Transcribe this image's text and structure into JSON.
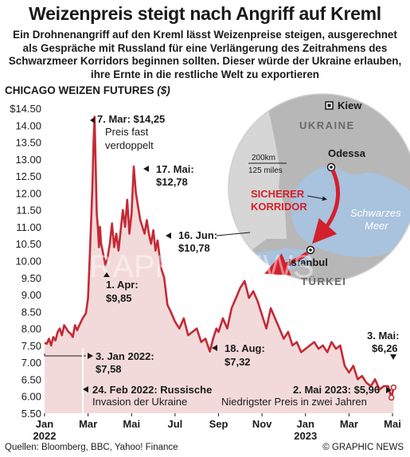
{
  "header": {
    "title": "Weizenpreis steigt nach Angriff auf Kreml",
    "intro": "Ein Drohnenangriff auf den Kreml lässt Weizenpreise steigen, ausgerechnet als Gespräche mit Russland für eine Verlängerung des Zeitrahmens des Schwarzmeer Korridors beginnen sollten. Dieser würde der Ukraine erlauben, ihre Ernte in die restliche Welt zu exportieren"
  },
  "footer": {
    "sources": "Quellen: Bloomberg, BBC, Yahoo! Finance",
    "credit": "© GRAPHIC NEWS"
  },
  "map": {
    "kiev": "Kiew",
    "ukraine": "UKRAINE",
    "odessa": "Odessa",
    "istanbul": "Istanbul",
    "turkey": "TÜRKEI",
    "sea_line1": "Schwarzes",
    "sea_line2": "Meer",
    "corridor_line1": "SICHERER",
    "corridor_line2": "KORRIDOR",
    "scale_km": "200km",
    "scale_miles": "125 miles",
    "corridor_color": "#d4202c",
    "sea_color": "#a9c2dd",
    "land_color": "#b7b7b7"
  },
  "watermark": {
    "logo": "GN",
    "text": "GRAPHIC NEWS"
  },
  "chart_data": {
    "type": "area",
    "title": "CHICAGO WEIZEN FUTURES",
    "unit": "($)",
    "ylim": [
      5.5,
      14.5
    ],
    "yticks": [
      "$14.50",
      "14.00",
      "13.50",
      "13.00",
      "12.50",
      "12.00",
      "11.50",
      "11.00",
      "10.50",
      "10.00",
      "9.50",
      "9.00",
      "8.50",
      "8.00",
      "7.50",
      "7.00",
      "6.50",
      "6.00",
      "5.50"
    ],
    "xticks": [
      {
        "label": "Jan",
        "sub": "2022",
        "pos": 0
      },
      {
        "label": "Mar",
        "sub": "",
        "pos": 2
      },
      {
        "label": "Mai",
        "sub": "",
        "pos": 4
      },
      {
        "label": "Jul",
        "sub": "",
        "pos": 6
      },
      {
        "label": "Sep",
        "sub": "",
        "pos": 8
      },
      {
        "label": "Nov",
        "sub": "",
        "pos": 10
      },
      {
        "label": "Jan",
        "sub": "2023",
        "pos": 12
      },
      {
        "label": "Mar",
        "sub": "",
        "pos": 14
      },
      {
        "label": "Mai",
        "sub": "",
        "pos": 16
      }
    ],
    "series": [
      {
        "x": [
          0,
          0.1,
          0.2,
          0.3,
          0.4,
          0.5,
          0.6,
          0.7,
          0.8,
          0.9,
          1.0,
          1.1,
          1.2,
          1.3,
          1.4,
          1.5,
          1.6,
          1.75,
          1.9,
          2.0,
          2.1,
          2.2,
          2.25,
          2.3,
          2.35,
          2.4,
          2.45,
          2.5,
          2.55,
          2.6,
          2.7,
          2.8,
          2.9,
          3.0,
          3.1,
          3.2,
          3.3,
          3.4,
          3.5,
          3.6,
          3.7,
          3.8,
          3.9,
          4.0,
          4.1,
          4.2,
          4.3,
          4.4,
          4.5,
          4.6,
          4.7,
          4.8,
          4.9,
          5.0,
          5.1,
          5.2,
          5.35,
          5.5,
          5.65,
          5.8,
          6.0,
          6.2,
          6.4,
          6.6,
          6.8,
          7.0,
          7.2,
          7.4,
          7.6,
          7.75,
          7.9,
          8.0,
          8.2,
          8.4,
          8.6,
          8.8,
          9.0,
          9.2,
          9.4,
          9.6,
          9.8,
          10.0,
          10.2,
          10.4,
          10.6,
          10.8,
          11.0,
          11.2,
          11.4,
          11.6,
          11.8,
          12.0,
          12.2,
          12.4,
          12.6,
          12.8,
          13.0,
          13.2,
          13.4,
          13.6,
          13.8,
          14.0,
          14.2,
          14.4,
          14.6,
          14.8,
          15.0,
          15.2,
          15.4,
          15.6,
          15.8,
          15.95,
          16.05
        ],
        "y": [
          7.58,
          7.55,
          7.7,
          7.5,
          7.75,
          7.65,
          7.9,
          8.0,
          7.8,
          8.1,
          8.0,
          7.9,
          7.85,
          7.75,
          8.1,
          7.95,
          8.1,
          8.3,
          8.45,
          8.9,
          10.5,
          12.2,
          13.5,
          14.25,
          12.8,
          11.4,
          11.0,
          10.4,
          11.0,
          10.5,
          10.2,
          9.85,
          10.1,
          10.5,
          11.1,
          10.4,
          10.8,
          10.3,
          10.9,
          11.5,
          11.0,
          11.8,
          10.8,
          11.4,
          12.78,
          12.0,
          11.6,
          11.2,
          11.0,
          10.8,
          11.2,
          10.78,
          10.5,
          10.9,
          10.3,
          10.6,
          9.8,
          9.5,
          8.7,
          8.5,
          8.2,
          8.0,
          8.3,
          7.8,
          7.9,
          8.0,
          7.6,
          7.7,
          7.32,
          7.7,
          8.0,
          7.9,
          8.3,
          8.0,
          8.6,
          8.9,
          9.2,
          9.4,
          8.9,
          9.1,
          8.8,
          8.4,
          8.0,
          8.6,
          8.3,
          8.0,
          7.7,
          7.9,
          7.5,
          7.6,
          7.3,
          7.4,
          7.5,
          7.6,
          7.4,
          7.5,
          7.3,
          7.6,
          7.4,
          7.5,
          6.9,
          6.7,
          6.9,
          6.5,
          6.6,
          6.4,
          6.3,
          6.5,
          6.2,
          6.3,
          6.3,
          5.96,
          6.26
        ]
      }
    ],
    "annotations": [
      {
        "id": "mar7",
        "lines": [
          "7. Mar: $14,25",
          "Preis fast",
          "verdoppelt"
        ]
      },
      {
        "id": "may17",
        "lines": [
          "17. Mai:",
          "$12,78"
        ]
      },
      {
        "id": "jun16",
        "lines": [
          "16. Jun:",
          "$10,78"
        ]
      },
      {
        "id": "apr1",
        "lines": [
          "1. Apr:",
          "$9,85"
        ]
      },
      {
        "id": "aug18",
        "lines": [
          "18. Aug:",
          "$7,32"
        ]
      },
      {
        "id": "jan3",
        "lines": [
          "3. Jan 2022:",
          "$7,58"
        ]
      },
      {
        "id": "may3",
        "lines": [
          "3. Mai:",
          "$6,26"
        ]
      },
      {
        "id": "may2",
        "lines": [
          "2. Mai 2023: $5,96",
          "Niedrigster Preis in zwei Jahren"
        ]
      },
      {
        "id": "feb24",
        "lines": [
          "24. Feb 2022: Russische",
          "Invasion der Ukraine"
        ]
      }
    ],
    "colors": {
      "line": "#c42a36",
      "fill": "#f3dada",
      "text": "#1a1a1a"
    },
    "grid": false
  }
}
